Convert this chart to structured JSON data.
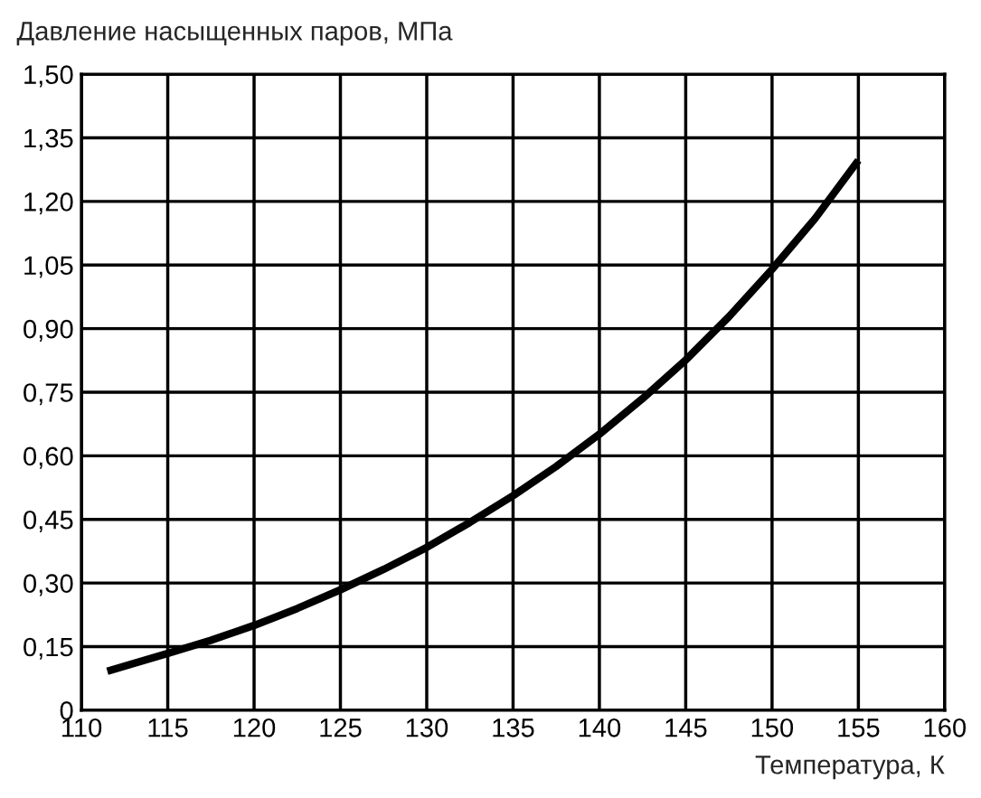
{
  "chart_data": {
    "type": "line",
    "ylabel": "Давление насыщенных паров, МПа",
    "xlabel": "Температура, К",
    "x": [
      111.5,
      113,
      115,
      117.5,
      120,
      122.5,
      125,
      127.5,
      130,
      132.5,
      135,
      137.5,
      140,
      142.5,
      145,
      147.5,
      150,
      152.5,
      155
    ],
    "series": [
      {
        "color": "#000000",
        "values": [
          0.092,
          0.11,
          0.134,
          0.165,
          0.2,
          0.24,
          0.284,
          0.332,
          0.384,
          0.443,
          0.506,
          0.575,
          0.651,
          0.735,
          0.826,
          0.928,
          1.04,
          1.16,
          1.297
        ]
      }
    ],
    "xlim": [
      110,
      160
    ],
    "xticks": [
      110,
      115,
      120,
      125,
      130,
      135,
      140,
      145,
      150,
      155,
      160
    ],
    "ylim": [
      0,
      1.5
    ],
    "yticks": [
      0,
      {
        "value": 0.15,
        "label": "0,15"
      },
      {
        "value": 0.3,
        "label": "0,30"
      },
      {
        "value": 0.45,
        "label": "0,45"
      },
      {
        "value": 0.6,
        "label": "0,60"
      },
      {
        "value": 0.75,
        "label": "0,75"
      },
      {
        "value": 0.9,
        "label": "0,90"
      },
      {
        "value": 1.05,
        "label": "1,05"
      },
      {
        "value": 1.2,
        "label": "1,20"
      },
      {
        "value": 1.35,
        "label": "1,35"
      },
      {
        "value": 1.5,
        "label": "1,50"
      }
    ],
    "grid": true,
    "line_style": "solid"
  }
}
